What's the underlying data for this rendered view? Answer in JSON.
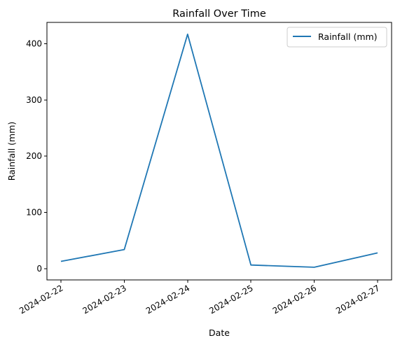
{
  "chart_data": {
    "type": "line",
    "title": "Rainfall Over Time",
    "xlabel": "Date",
    "ylabel": "Rainfall (mm)",
    "x": [
      "2024-02-22",
      "2024-02-23",
      "2024-02-24",
      "2024-02-25",
      "2024-02-26",
      "2024-02-27"
    ],
    "series": [
      {
        "name": "Rainfall (mm)",
        "color": "#1f77b4",
        "values": [
          13,
          34,
          417,
          6.5,
          2.5,
          28
        ]
      }
    ],
    "ylim": [
      -20,
      438
    ],
    "yticks": [
      0,
      100,
      200,
      300,
      400
    ],
    "grid": false,
    "legend_position": "top-right"
  }
}
